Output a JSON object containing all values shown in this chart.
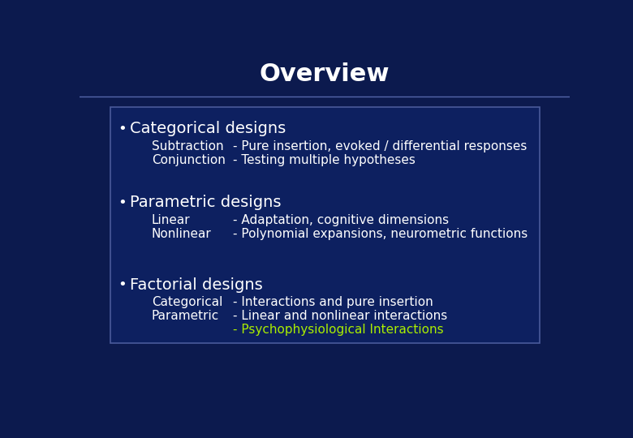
{
  "title": "Overview",
  "bg_color": "#0c1a4e",
  "title_color": "#ffffff",
  "box_bg_color": "#0d2060",
  "box_border_color": "#4a5a9a",
  "text_color": "#ffffff",
  "highlight_color": "#aaee00",
  "title_fontsize": 22,
  "bullet_fontsize": 14,
  "sub_fontsize": 11,
  "line_color": "#5566aa",
  "sections": [
    {
      "bullet": "Categorical designs",
      "subs": [
        [
          "Subtraction",
          "- Pure insertion, evoked / differential responses"
        ],
        [
          "Conjunction",
          "- Testing multiple hypotheses"
        ]
      ]
    },
    {
      "bullet": "Parametric designs",
      "subs": [
        [
          "Linear",
          "- Adaptation, cognitive dimensions"
        ],
        [
          "Nonlinear",
          "- Polynomial expansions, neurometric functions"
        ]
      ]
    },
    {
      "bullet": "Factorial designs",
      "subs": [
        [
          "Categorical",
          "- Interactions and pure insertion"
        ],
        [
          "Parametric",
          "- Linear and nonlinear interactions"
        ],
        [
          "",
          "- Psychophysiological Interactions"
        ]
      ]
    }
  ]
}
